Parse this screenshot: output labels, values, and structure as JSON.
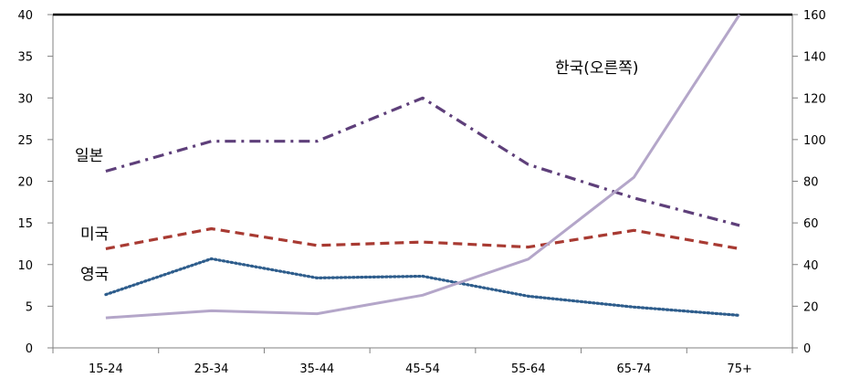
{
  "chart_data": {
    "type": "line",
    "categories": [
      "15-24",
      "25-34",
      "35-44",
      "45-54",
      "55-64",
      "65-74",
      "75+"
    ],
    "y_left": {
      "min": 0,
      "max": 40,
      "ticks": [
        "0",
        "5",
        "10",
        "15",
        "20",
        "25",
        "30",
        "35",
        "40"
      ]
    },
    "y_right": {
      "min": 0,
      "max": 160,
      "ticks": [
        "0",
        "20",
        "40",
        "60",
        "80",
        "100",
        "120",
        "140",
        "160"
      ]
    },
    "grid": false,
    "series": [
      {
        "name": "일본",
        "axis": "left",
        "color": "#5e3f7a",
        "dash": "dashdot",
        "values": [
          21.2,
          24.8,
          24.8,
          30.0,
          22.0,
          18.0,
          14.7
        ]
      },
      {
        "name": "미국",
        "axis": "left",
        "color": "#a83a32",
        "dash": "dash",
        "values": [
          11.9,
          14.3,
          12.3,
          12.7,
          12.1,
          14.1,
          11.9
        ]
      },
      {
        "name": "영국",
        "axis": "left",
        "color": "#2e5d8c",
        "dash": "dot",
        "values": [
          6.4,
          10.7,
          8.4,
          8.6,
          6.2,
          4.9,
          3.9
        ]
      },
      {
        "name": "한국(오른쪽)",
        "axis": "right",
        "color": "#b4a6c9",
        "dash": "solid",
        "values": [
          14.4,
          17.8,
          16.4,
          25.3,
          42.6,
          81.9,
          160.0
        ]
      }
    ]
  }
}
